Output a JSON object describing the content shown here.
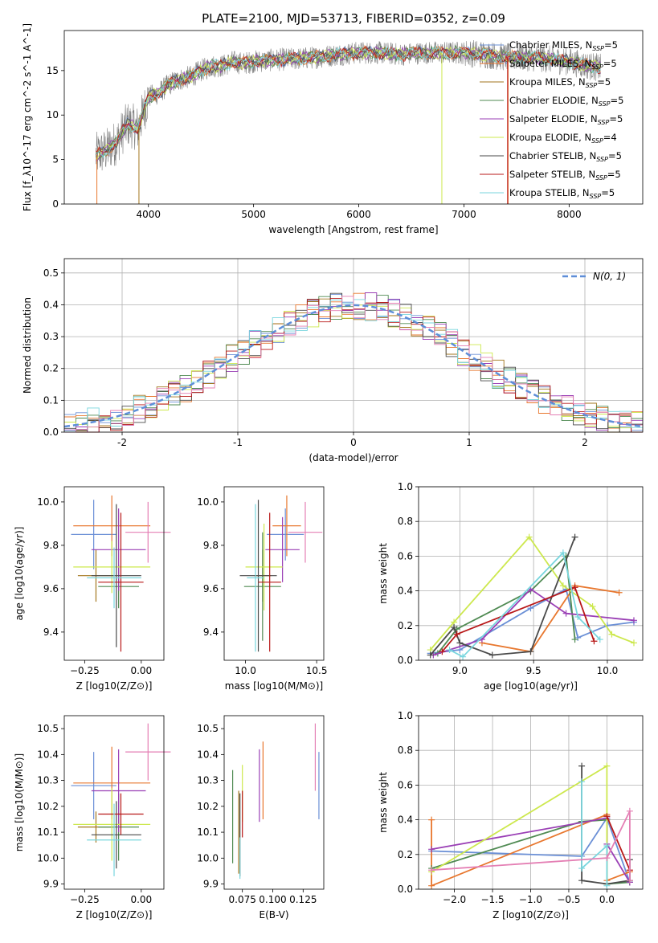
{
  "chart_data": [
    {
      "id": "spectrum",
      "type": "line",
      "title": "PLATE=2100, MJD=53713, FIBERID=0352, z=0.09",
      "xlabel": "wavelength [Angstrom, rest frame]",
      "ylabel": "Flux [f_λ10^-17 erg cm^-2 s^-1 A^-1]",
      "xlim": [
        3200,
        8700
      ],
      "ylim": [
        0,
        19.5
      ],
      "xticks": [
        4000,
        5000,
        6000,
        7000,
        8000
      ],
      "yticks": [
        0,
        5,
        10,
        15
      ],
      "legend_position": "right",
      "observed_color": "#808080",
      "continuum": {
        "x": [
          3500,
          3600,
          3700,
          3800,
          3900,
          4000,
          4100,
          4200,
          4300,
          4400,
          4500,
          4600,
          4700,
          4800,
          4900,
          5000,
          5200,
          5400,
          5600,
          5800,
          6000,
          6200,
          6400,
          6600,
          6800,
          7000,
          7200,
          7400,
          7600,
          7800,
          8000,
          8200,
          8300
        ],
        "y": [
          5.5,
          6,
          7,
          9,
          8.5,
          12,
          12.5,
          13.5,
          14,
          14.3,
          15,
          15.5,
          15.5,
          16,
          15.8,
          16,
          16.2,
          16.3,
          16.5,
          16.8,
          17,
          17,
          16.8,
          17,
          17,
          17,
          16.8,
          16.5,
          16.5,
          16.3,
          16,
          15.5,
          15.3
        ]
      },
      "series": [
        {
          "name": "Chabrier MILES",
          "nssp": "5",
          "color": "#6a8fd6"
        },
        {
          "name": "Salpeter MILES",
          "nssp": "5",
          "color": "#e8772e"
        },
        {
          "name": "Kroupa MILES",
          "nssp": "5",
          "color": "#a2761d"
        },
        {
          "name": "Chabrier ELODIE",
          "nssp": "5",
          "color": "#4f8a52"
        },
        {
          "name": "Salpeter ELODIE",
          "nssp": "5",
          "color": "#9a3fb5"
        },
        {
          "name": "Kroupa ELODIE",
          "nssp": "4",
          "color": "#cde84e"
        },
        {
          "name": "Chabrier STELIB",
          "nssp": "5",
          "color": "#4a4a4a"
        },
        {
          "name": "Salpeter STELIB",
          "nssp": "5",
          "color": "#b81818"
        },
        {
          "name": "Kroupa STELIB",
          "nssp": "5",
          "color": "#79d6de"
        }
      ]
    },
    {
      "id": "residuals",
      "type": "histogram",
      "xlabel": "(data-model)/error",
      "ylabel": "Normed distribution",
      "xlim": [
        -2.5,
        2.5
      ],
      "ylim": [
        0,
        0.545
      ],
      "xticks": [
        -2,
        -1,
        0,
        1,
        2
      ],
      "yticks": [
        0.0,
        0.1,
        0.2,
        0.3,
        0.4,
        0.5
      ],
      "grid": true,
      "legend": "N(0, 1)",
      "legend_position": "top-right",
      "gaussian_color": "#5e8ed8",
      "bin_width": 0.1,
      "series_colors": [
        "#6a8fd6",
        "#e8772e",
        "#a2761d",
        "#4f8a52",
        "#9a3fb5",
        "#cde84e",
        "#4a4a4a",
        "#b81818",
        "#79d6de",
        "#e47fb4"
      ]
    },
    {
      "id": "z-age",
      "type": "errorbar",
      "xlabel": "Z [log10(Z/Z⊙)]",
      "ylabel": "age  [log10(age/yr)]",
      "xlim": [
        -0.34,
        0.1
      ],
      "ylim": [
        9.27,
        10.07
      ],
      "xticks": [
        -0.25,
        0.0
      ],
      "xticklabels": [
        "−0.25",
        "0.00"
      ],
      "yticks": [
        9.4,
        9.6,
        9.8,
        10.0
      ],
      "yticklabels": [
        "9.4",
        "9.6",
        "9.8",
        "10.0"
      ],
      "points": [
        {
          "x": -0.21,
          "y": 9.85,
          "xerr": 0.1,
          "yerr": 0.16,
          "color": "#6a8fd6"
        },
        {
          "x": -0.13,
          "y": 9.89,
          "xerr": 0.17,
          "yerr": 0.14,
          "color": "#e8772e"
        },
        {
          "x": -0.2,
          "y": 9.66,
          "xerr": 0.08,
          "yerr": 0.12,
          "color": "#a2761d"
        },
        {
          "x": -0.1,
          "y": 9.61,
          "xerr": 0.09,
          "yerr": 0.1,
          "color": "#4f8a52"
        },
        {
          "x": -0.1,
          "y": 9.78,
          "xerr": 0.12,
          "yerr": 0.19,
          "color": "#9a3fb5"
        },
        {
          "x": -0.13,
          "y": 9.7,
          "xerr": 0.17,
          "yerr": 0.12,
          "color": "#cde84e"
        },
        {
          "x": -0.11,
          "y": 9.66,
          "xerr": 0.11,
          "yerr": 0.33,
          "color": "#4a4a4a"
        },
        {
          "x": -0.09,
          "y": 9.63,
          "xerr": 0.1,
          "yerr": 0.32,
          "color": "#b81818"
        },
        {
          "x": -0.12,
          "y": 9.65,
          "xerr": 0.12,
          "yerr": 0.14,
          "color": "#79d6de"
        },
        {
          "x": 0.03,
          "y": 9.86,
          "xerr": 0.1,
          "yerr": 0.14,
          "color": "#e47fb4"
        }
      ]
    },
    {
      "id": "mass-age",
      "type": "errorbar",
      "xlabel": "mass [log10(M/M⊙)]",
      "ylabel": "",
      "xlim": [
        9.85,
        10.55
      ],
      "ylim": [
        9.27,
        10.07
      ],
      "xticks": [
        10.0,
        10.5
      ],
      "xticklabels": [
        "10.0",
        "10.5"
      ],
      "yticks": [
        9.4,
        9.6,
        9.8,
        10.0
      ],
      "yticklabels": [
        "9.4",
        "9.6",
        "9.8",
        "10.0"
      ],
      "points": [
        {
          "x": 10.28,
          "y": 9.85,
          "xerr": 0.13,
          "yerr": 0.12,
          "color": "#6a8fd6"
        },
        {
          "x": 10.29,
          "y": 9.89,
          "xerr": 0.1,
          "yerr": 0.14,
          "color": "#e8772e"
        },
        {
          "x": 10.12,
          "y": 9.66,
          "xerr": 0.06,
          "yerr": 0.12,
          "color": "#a2761d"
        },
        {
          "x": 10.12,
          "y": 9.61,
          "xerr": 0.13,
          "yerr": 0.25,
          "color": "#4f8a52"
        },
        {
          "x": 10.26,
          "y": 9.78,
          "xerr": 0.12,
          "yerr": 0.15,
          "color": "#9a3fb5"
        },
        {
          "x": 10.13,
          "y": 9.7,
          "xerr": 0.13,
          "yerr": 0.2,
          "color": "#cde84e"
        },
        {
          "x": 10.09,
          "y": 9.66,
          "xerr": 0.13,
          "yerr": 0.35,
          "color": "#4a4a4a"
        },
        {
          "x": 10.17,
          "y": 9.63,
          "xerr": 0.08,
          "yerr": 0.32,
          "color": "#b81818"
        },
        {
          "x": 10.07,
          "y": 9.65,
          "xerr": 0.06,
          "yerr": 0.34,
          "color": "#79d6de"
        },
        {
          "x": 10.42,
          "y": 9.86,
          "xerr": 0.12,
          "yerr": 0.14,
          "color": "#e47fb4"
        }
      ]
    },
    {
      "id": "weight-age",
      "type": "line",
      "xlabel": "age  [log10(age/yr)]",
      "ylabel": "mass weight",
      "xlim": [
        8.72,
        10.24
      ],
      "ylim": [
        0,
        1
      ],
      "xticks": [
        9.0,
        9.5,
        10.0
      ],
      "xticklabels": [
        "9.0",
        "9.5",
        "10.0"
      ],
      "yticks": [
        0,
        0.2,
        0.4,
        0.6,
        0.8,
        1.0
      ],
      "yticklabels": [
        "0.0",
        "0.2",
        "0.4",
        "0.6",
        "0.8",
        "1.0"
      ],
      "grid": true,
      "series": [
        {
          "color": "#6a8fd6",
          "x": [
            8.8,
            9.0,
            9.48,
            9.72,
            9.8,
            10.0,
            10.18
          ],
          "y": [
            0.04,
            0.06,
            0.3,
            0.41,
            0.13,
            0.2,
            0.22
          ]
        },
        {
          "color": "#e8772e",
          "x": [
            9.15,
            9.48,
            9.78,
            10.08
          ],
          "y": [
            0.1,
            0.05,
            0.43,
            0.39
          ]
        },
        {
          "color": "#4f8a52",
          "x": [
            8.85,
            8.98,
            9.48,
            9.72,
            9.78
          ],
          "y": [
            0.04,
            0.18,
            0.4,
            0.6,
            0.12
          ]
        },
        {
          "color": "#9a3fb5",
          "x": [
            8.82,
            9.15,
            9.48,
            9.72,
            10.18
          ],
          "y": [
            0.03,
            0.12,
            0.41,
            0.27,
            0.23
          ]
        },
        {
          "color": "#cde84e",
          "x": [
            8.8,
            8.96,
            9.47,
            9.7,
            9.9,
            10.03,
            10.18
          ],
          "y": [
            0.06,
            0.22,
            0.71,
            0.43,
            0.31,
            0.15,
            0.1
          ]
        },
        {
          "color": "#4a4a4a",
          "x": [
            8.8,
            8.96,
            9.0,
            9.22,
            9.48,
            9.78
          ],
          "y": [
            0.03,
            0.19,
            0.1,
            0.03,
            0.05,
            0.71
          ]
        },
        {
          "color": "#b81818",
          "x": [
            8.88,
            8.98,
            9.78,
            9.91
          ],
          "y": [
            0.05,
            0.15,
            0.42,
            0.11
          ]
        },
        {
          "color": "#79d6de",
          "x": [
            8.93,
            9.02,
            9.7,
            9.8,
            9.95
          ],
          "y": [
            0.06,
            0.02,
            0.62,
            0.25,
            0.12
          ]
        }
      ]
    },
    {
      "id": "z-mass",
      "type": "errorbar",
      "xlabel": "Z [log10(Z/Z⊙)]",
      "ylabel": "mass [log10(M/M⊙)]",
      "xlim": [
        -0.34,
        0.1
      ],
      "ylim": [
        9.88,
        10.55
      ],
      "xticks": [
        -0.25,
        0.0
      ],
      "xticklabels": [
        "−0.25",
        "0.00"
      ],
      "yticks": [
        9.9,
        10.0,
        10.1,
        10.2,
        10.3,
        10.4,
        10.5
      ],
      "yticklabels": [
        "9.9",
        "10.0",
        "10.1",
        "10.2",
        "10.3",
        "10.4",
        "10.5"
      ],
      "points": [
        {
          "x": -0.21,
          "y": 10.28,
          "xerr": 0.1,
          "yerr": 0.13,
          "color": "#6a8fd6"
        },
        {
          "x": -0.13,
          "y": 10.29,
          "xerr": 0.17,
          "yerr": 0.14,
          "color": "#e8772e"
        },
        {
          "x": -0.2,
          "y": 10.12,
          "xerr": 0.08,
          "yerr": 0.06,
          "color": "#a2761d"
        },
        {
          "x": -0.1,
          "y": 10.12,
          "xerr": 0.09,
          "yerr": 0.13,
          "color": "#4f8a52"
        },
        {
          "x": -0.1,
          "y": 10.26,
          "xerr": 0.12,
          "yerr": 0.16,
          "color": "#9a3fb5"
        },
        {
          "x": -0.13,
          "y": 10.13,
          "xerr": 0.17,
          "yerr": 0.14,
          "color": "#cde84e"
        },
        {
          "x": -0.11,
          "y": 10.09,
          "xerr": 0.11,
          "yerr": 0.13,
          "color": "#4a4a4a"
        },
        {
          "x": -0.09,
          "y": 10.17,
          "xerr": 0.1,
          "yerr": 0.08,
          "color": "#b81818"
        },
        {
          "x": -0.12,
          "y": 10.07,
          "xerr": 0.12,
          "yerr": 0.14,
          "color": "#79d6de"
        },
        {
          "x": 0.03,
          "y": 10.41,
          "xerr": 0.1,
          "yerr": 0.11,
          "color": "#e47fb4"
        }
      ]
    },
    {
      "id": "ebv-mass",
      "type": "errorbar",
      "xlabel": "E(B-V)",
      "ylabel": "",
      "xlim": [
        0.06,
        0.142
      ],
      "ylim": [
        9.88,
        10.55
      ],
      "xticks": [
        0.075,
        0.1,
        0.125
      ],
      "xticklabels": [
        "0.075",
        "0.100",
        "0.125"
      ],
      "yticks": [
        9.9,
        10.0,
        10.1,
        10.2,
        10.3,
        10.4,
        10.5
      ],
      "yticklabels": [
        "9.9",
        "10.0",
        "10.1",
        "10.2",
        "10.3",
        "10.4",
        "10.5"
      ],
      "points": [
        {
          "x": 0.138,
          "y": 10.28,
          "xerr": 0,
          "yerr": 0.13,
          "color": "#6a8fd6"
        },
        {
          "x": 0.092,
          "y": 10.3,
          "xerr": 0,
          "yerr": 0.15,
          "color": "#e8772e"
        },
        {
          "x": 0.072,
          "y": 10.1,
          "xerr": 0,
          "yerr": 0.16,
          "color": "#a2761d"
        },
        {
          "x": 0.067,
          "y": 10.16,
          "xerr": 0,
          "yerr": 0.18,
          "color": "#4f8a52"
        },
        {
          "x": 0.089,
          "y": 10.28,
          "xerr": 0,
          "yerr": 0.14,
          "color": "#9a3fb5"
        },
        {
          "x": 0.075,
          "y": 10.25,
          "xerr": 0,
          "yerr": 0.11,
          "color": "#cde84e"
        },
        {
          "x": 0.073,
          "y": 10.09,
          "xerr": 0,
          "yerr": 0.16,
          "color": "#4a4a4a"
        },
        {
          "x": 0.075,
          "y": 10.17,
          "xerr": 0,
          "yerr": 0.09,
          "color": "#b81818"
        },
        {
          "x": 0.073,
          "y": 10.0,
          "xerr": 0,
          "yerr": 0.08,
          "color": "#79d6de"
        },
        {
          "x": 0.135,
          "y": 10.39,
          "xerr": 0,
          "yerr": 0.13,
          "color": "#e47fb4"
        }
      ]
    },
    {
      "id": "weight-z",
      "type": "line",
      "xlabel": "Z [log10(Z/Z⊙)]",
      "ylabel": "mass weight",
      "xlim": [
        -2.47,
        0.47
      ],
      "ylim": [
        0,
        1
      ],
      "xticks": [
        -2.0,
        -1.5,
        -1.0,
        -0.5,
        0.0
      ],
      "xticklabels": [
        "−2.0",
        "−1.5",
        "−1.0",
        "−0.5",
        "0.0"
      ],
      "yticks": [
        0,
        0.2,
        0.4,
        0.6,
        0.8,
        1.0
      ],
      "yticklabels": [
        "0.0",
        "0.2",
        "0.4",
        "0.6",
        "0.8",
        "1.0"
      ],
      "grid": true,
      "series": [
        {
          "color": "#6a8fd6",
          "x": [
            -2.3,
            -0.33,
            0.0,
            0.3
          ],
          "y": [
            0.22,
            0.19,
            0.41,
            0.04
          ]
        },
        {
          "color": "#e8772e",
          "x": [
            -2.3,
            -2.3,
            0.0,
            0.0,
            0.3
          ],
          "y": [
            0.4,
            0.02,
            0.43,
            0.05,
            0.1
          ]
        },
        {
          "color": "#4f8a52",
          "x": [
            -2.3,
            -0.33,
            0.0,
            0.0,
            0.3
          ],
          "y": [
            0.12,
            0.39,
            0.4,
            0.03,
            0.04
          ]
        },
        {
          "color": "#9a3fb5",
          "x": [
            -2.3,
            0.0,
            0.0,
            0.3
          ],
          "y": [
            0.23,
            0.41,
            0.26,
            0.04
          ]
        },
        {
          "color": "#cde84e",
          "x": [
            -2.3,
            0.0,
            0.0
          ],
          "y": [
            0.1,
            0.71,
            0.03
          ]
        },
        {
          "color": "#4a4a4a",
          "x": [
            -0.33,
            -0.33,
            0.0,
            0.3,
            0.3
          ],
          "y": [
            0.71,
            0.05,
            0.03,
            0.05,
            0.17
          ]
        },
        {
          "color": "#b81818",
          "x": [
            0.0,
            0.3
          ],
          "y": [
            0.42,
            0.11
          ]
        },
        {
          "color": "#79d6de",
          "x": [
            -0.33,
            -0.33,
            0.0,
            0.0
          ],
          "y": [
            0.62,
            0.12,
            0.25,
            0.02
          ]
        },
        {
          "color": "#e47fb4",
          "x": [
            -2.3,
            0.0,
            0.3,
            0.3
          ],
          "y": [
            0.11,
            0.18,
            0.45,
            0.05
          ]
        }
      ]
    }
  ]
}
